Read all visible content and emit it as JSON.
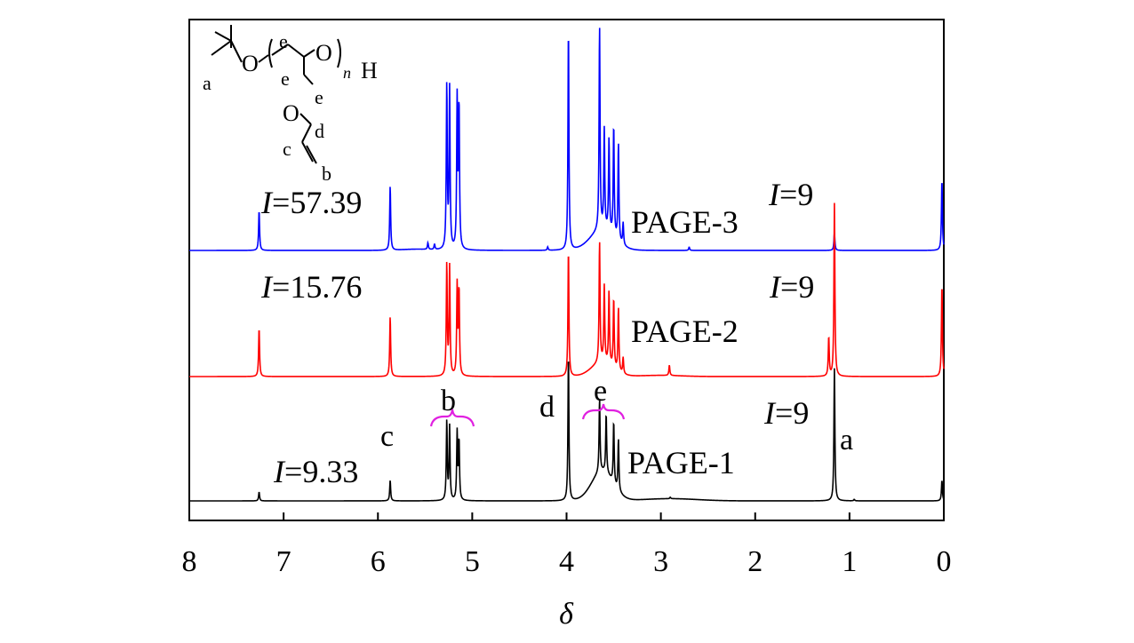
{
  "chart_data": {
    "type": "line",
    "title": "",
    "xlabel": "δ",
    "ylabel": "",
    "x_reversed": true,
    "xlim": [
      8,
      0
    ],
    "grid": false,
    "x_ticks": [
      "8",
      "7",
      "6",
      "5",
      "4",
      "3",
      "2",
      "1",
      "0"
    ],
    "series": [
      {
        "name": "PAGE-3",
        "color": "#0000ff",
        "peaks": [
          {
            "x": 7.26,
            "h": 0.18
          },
          {
            "x": 5.87,
            "h": 0.29
          },
          {
            "x": 5.47,
            "h": 0.03
          },
          {
            "x": 5.4,
            "h": 0.025
          },
          {
            "x": 5.27,
            "h": 0.74
          },
          {
            "x": 5.24,
            "h": 0.72
          },
          {
            "x": 5.16,
            "h": 0.67
          },
          {
            "x": 5.14,
            "h": 0.64
          },
          {
            "x": 4.2,
            "h": 0.015
          },
          {
            "x": 3.98,
            "h": 1.0
          },
          {
            "x": 3.65,
            "h": 0.92
          },
          {
            "x": 3.6,
            "h": 0.45
          },
          {
            "x": 3.55,
            "h": 0.42
          },
          {
            "x": 3.5,
            "h": 0.5
          },
          {
            "x": 3.45,
            "h": 0.44
          },
          {
            "x": 3.4,
            "h": 0.1
          },
          {
            "x": 2.7,
            "h": 0.015
          },
          {
            "x": 1.16,
            "h": 0.08
          },
          {
            "x": 0.02,
            "h": 0.32
          }
        ]
      },
      {
        "name": "PAGE-2",
        "color": "#ff0000",
        "peaks": [
          {
            "x": 7.26,
            "h": 0.42
          },
          {
            "x": 5.87,
            "h": 0.52
          },
          {
            "x": 5.27,
            "h": 0.97
          },
          {
            "x": 5.24,
            "h": 0.94
          },
          {
            "x": 5.16,
            "h": 0.78
          },
          {
            "x": 5.14,
            "h": 0.74
          },
          {
            "x": 3.98,
            "h": 1.1
          },
          {
            "x": 3.65,
            "h": 1.05
          },
          {
            "x": 3.6,
            "h": 0.66
          },
          {
            "x": 3.55,
            "h": 0.63
          },
          {
            "x": 3.5,
            "h": 0.6
          },
          {
            "x": 3.45,
            "h": 0.55
          },
          {
            "x": 3.4,
            "h": 0.14
          },
          {
            "x": 2.91,
            "h": 0.09
          },
          {
            "x": 1.22,
            "h": 0.34
          },
          {
            "x": 1.16,
            "h": 1.5
          },
          {
            "x": 0.02,
            "h": 0.8
          }
        ]
      },
      {
        "name": "PAGE-1",
        "color": "#000000",
        "peaks": [
          {
            "x": 7.26,
            "h": 0.06
          },
          {
            "x": 5.87,
            "h": 0.14
          },
          {
            "x": 5.27,
            "h": 0.54
          },
          {
            "x": 5.24,
            "h": 0.5
          },
          {
            "x": 5.16,
            "h": 0.46
          },
          {
            "x": 5.14,
            "h": 0.4
          },
          {
            "x": 3.98,
            "h": 1.0
          },
          {
            "x": 3.65,
            "h": 0.5
          },
          {
            "x": 3.58,
            "h": 0.4
          },
          {
            "x": 3.5,
            "h": 0.42
          },
          {
            "x": 3.45,
            "h": 0.35
          },
          {
            "x": 2.9,
            "h": 0.01
          },
          {
            "x": 1.16,
            "h": 0.9
          },
          {
            "x": 0.95,
            "h": 0.01
          },
          {
            "x": 0.02,
            "h": 0.14
          }
        ]
      }
    ],
    "annotations": {
      "page3": {
        "integral": "57.39",
        "integral_a": "9"
      },
      "page2": {
        "integral": "15.76",
        "integral_a": "9"
      },
      "page1": {
        "integral": "9.33",
        "integral_a": "9",
        "peak_labels": [
          "c",
          "b",
          "d",
          "e",
          "a"
        ]
      }
    },
    "structure": {
      "labels": [
        "a",
        "O",
        "e",
        "O",
        "H",
        "e",
        "e",
        "O",
        "d",
        "c",
        "b"
      ],
      "subscript": "n"
    }
  }
}
